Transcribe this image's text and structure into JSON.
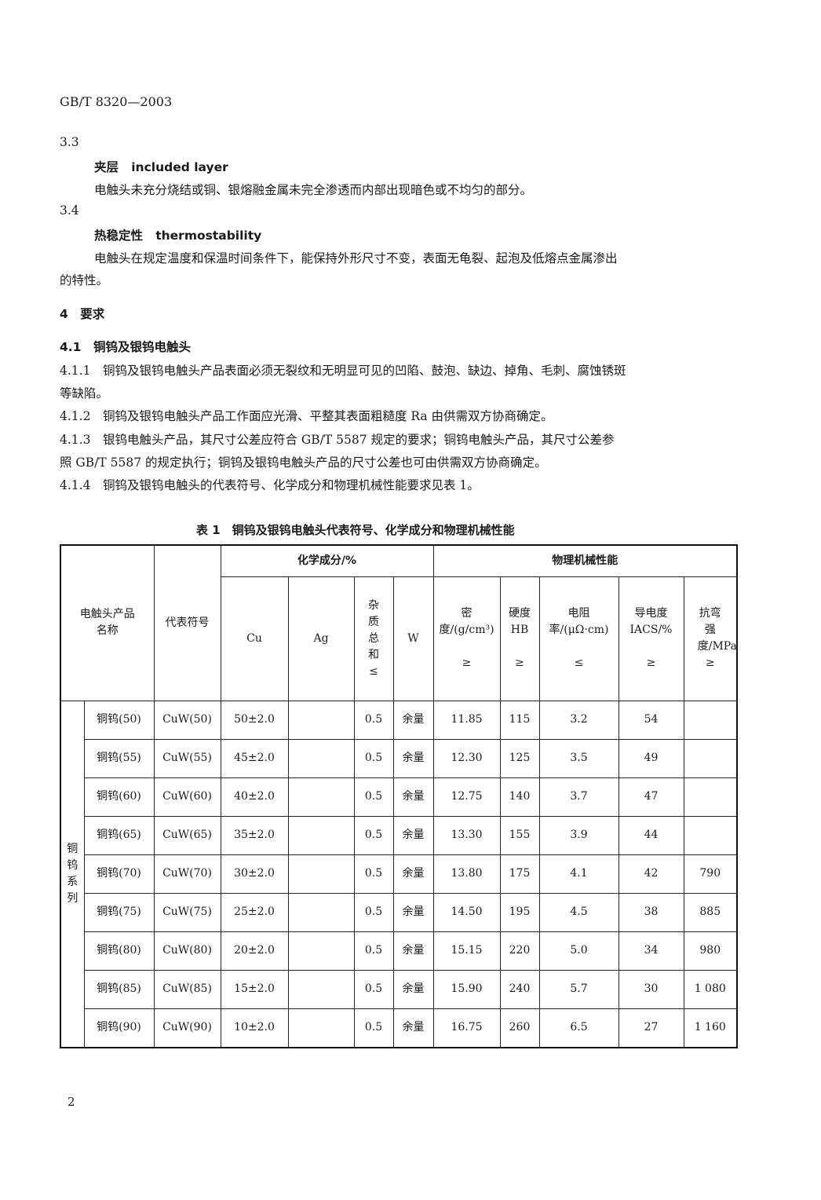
{
  "header": {
    "standard": "GB/T 8320—2003"
  },
  "sections": [
    {
      "num": "3.3",
      "term_cn": "夹层",
      "term_en": "included layer",
      "def": "电触头未充分烧结或铜、银熔融金属未完全渗透而内部出现暗色或不均匀的部分。"
    },
    {
      "num": "3.4",
      "term_cn": "热稳定性",
      "term_en": "thermostability",
      "def_line1": "电触头在规定温度和保温时间条件下，能保持外形尺寸不变，表面无龟裂、起泡及低熔点金属渗出",
      "def_line2": "的特性。"
    }
  ],
  "s4": {
    "title": "4　要求",
    "s41": "4.1　铜钨及银钨电触头",
    "p411a": "4.1.1　铜钨及银钨电触头产品表面必须无裂纹和无明显可见的凹陷、鼓泡、缺边、掉角、毛刺、腐蚀锈斑",
    "p411b": "等缺陷。",
    "p412": "4.1.2　铜钨及银钨电触头产品工作面应光滑、平整其表面粗糙度 Ra 由供需双方协商确定。",
    "p413a": "4.1.3　银钨电触头产品，其尺寸公差应符合 GB/T 5587 规定的要求；铜钨电触头产品，其尺寸公差参",
    "p413b": "照 GB/T 5587 的规定执行；铜钨及银钨电触头产品的尺寸公差也可由供需双方协商确定。",
    "p414": "4.1.4　铜钨及银钨电触头的代表符号、化学成分和物理机械性能要求见表 1。"
  },
  "table": {
    "caption": "表 1　铜钨及银钨电触头代表符号、化学成分和物理机械性能",
    "h_name": "电触头产品名称",
    "h_code": "代表符号",
    "h_chem": "化学成分/%",
    "h_phys": "物理机械性能",
    "h_cu": "Cu",
    "h_ag": "Ag",
    "h_imp": "杂质总和",
    "h_w": "W",
    "h_density": "密度/(g/cm³)",
    "h_hard": "硬度HB",
    "h_resist": "电阻率/(μΩ·cm)",
    "h_cond": "导电度IACS/%",
    "h_bend": "抗弯强度/MPa",
    "ge": "≥",
    "le": "≤",
    "series": "铜钨系列",
    "rows": [
      [
        "铜钨(50)",
        "CuW(50)",
        "50±2.0",
        "",
        "0.5",
        "余量",
        "11.85",
        "115",
        "3.2",
        "54",
        ""
      ],
      [
        "铜钨(55)",
        "CuW(55)",
        "45±2.0",
        "",
        "0.5",
        "余量",
        "12.30",
        "125",
        "3.5",
        "49",
        ""
      ],
      [
        "铜钨(60)",
        "CuW(60)",
        "40±2.0",
        "",
        "0.5",
        "余量",
        "12.75",
        "140",
        "3.7",
        "47",
        ""
      ],
      [
        "铜钨(65)",
        "CuW(65)",
        "35±2.0",
        "",
        "0.5",
        "余量",
        "13.30",
        "155",
        "3.9",
        "44",
        ""
      ],
      [
        "铜钨(70)",
        "CuW(70)",
        "30±2.0",
        "",
        "0.5",
        "余量",
        "13.80",
        "175",
        "4.1",
        "42",
        "790"
      ],
      [
        "铜钨(75)",
        "CuW(75)",
        "25±2.0",
        "",
        "0.5",
        "余量",
        "14.50",
        "195",
        "4.5",
        "38",
        "885"
      ],
      [
        "铜钨(80)",
        "CuW(80)",
        "20±2.0",
        "",
        "0.5",
        "余量",
        "15.15",
        "220",
        "5.0",
        "34",
        "980"
      ],
      [
        "铜钨(85)",
        "CuW(85)",
        "15±2.0",
        "",
        "0.5",
        "余量",
        "15.90",
        "240",
        "5.7",
        "30",
        "1 080"
      ],
      [
        "铜钨(90)",
        "CuW(90)",
        "10±2.0",
        "",
        "0.5",
        "余量",
        "16.75",
        "260",
        "6.5",
        "27",
        "1 160"
      ]
    ]
  },
  "footer": {
    "page": "2"
  }
}
